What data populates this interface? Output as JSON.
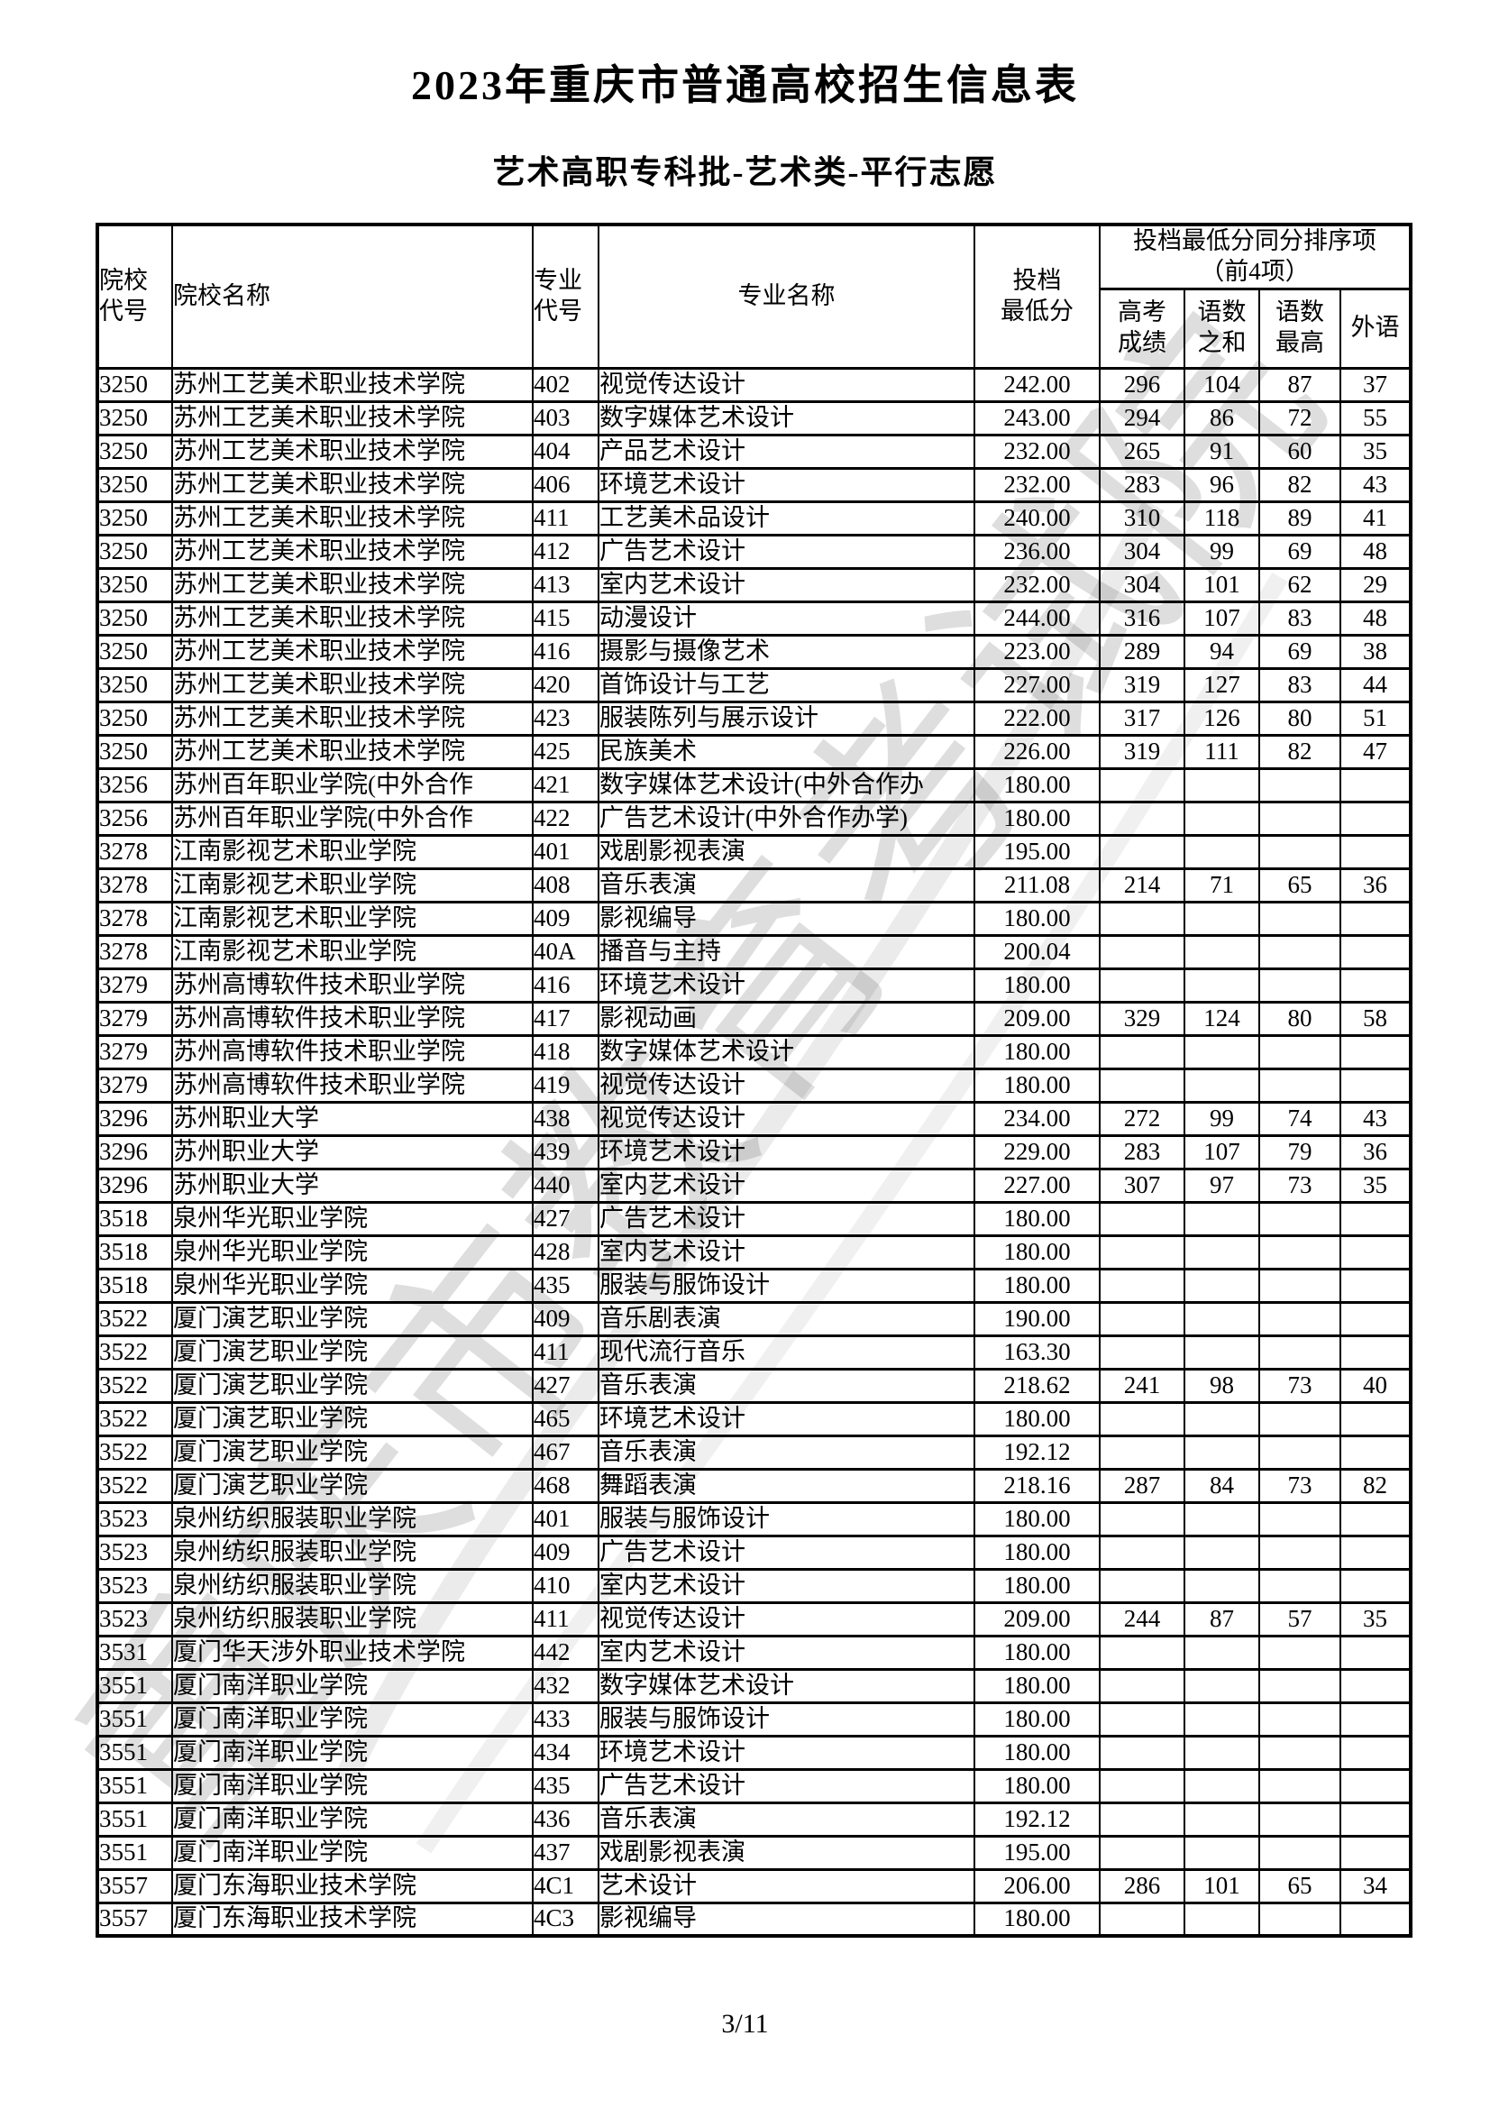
{
  "page": {
    "title": "2023年重庆市普通高校招生信息表",
    "subtitle": "艺术高职专科批-艺术类-平行志愿",
    "page_number": "3/11",
    "watermark": "重庆市教育考试院"
  },
  "table": {
    "headers": {
      "college_code": "院校\n代号",
      "college_name": "院校名称",
      "major_code": "专业\n代号",
      "major_name": "专业名称",
      "min_score": "投档\n最低分",
      "tiebreak_group": "投档最低分同分排序项\n（前4项）",
      "gaokao": "高考\n成绩",
      "yushu_sum": "语数\n之和",
      "yushu_max": "语数\n最高",
      "foreign": "外语"
    },
    "columns": [
      "院校代号",
      "院校名称",
      "专业代号",
      "专业名称",
      "投档最低分",
      "高考成绩",
      "语数之和",
      "语数最高",
      "外语"
    ],
    "rows": [
      [
        "3250",
        "苏州工艺美术职业技术学院",
        "402",
        "视觉传达设计",
        "242.00",
        "296",
        "104",
        "87",
        "37"
      ],
      [
        "3250",
        "苏州工艺美术职业技术学院",
        "403",
        "数字媒体艺术设计",
        "243.00",
        "294",
        "86",
        "72",
        "55"
      ],
      [
        "3250",
        "苏州工艺美术职业技术学院",
        "404",
        "产品艺术设计",
        "232.00",
        "265",
        "91",
        "60",
        "35"
      ],
      [
        "3250",
        "苏州工艺美术职业技术学院",
        "406",
        "环境艺术设计",
        "232.00",
        "283",
        "96",
        "82",
        "43"
      ],
      [
        "3250",
        "苏州工艺美术职业技术学院",
        "411",
        "工艺美术品设计",
        "240.00",
        "310",
        "118",
        "89",
        "41"
      ],
      [
        "3250",
        "苏州工艺美术职业技术学院",
        "412",
        "广告艺术设计",
        "236.00",
        "304",
        "99",
        "69",
        "48"
      ],
      [
        "3250",
        "苏州工艺美术职业技术学院",
        "413",
        "室内艺术设计",
        "232.00",
        "304",
        "101",
        "62",
        "29"
      ],
      [
        "3250",
        "苏州工艺美术职业技术学院",
        "415",
        "动漫设计",
        "244.00",
        "316",
        "107",
        "83",
        "48"
      ],
      [
        "3250",
        "苏州工艺美术职业技术学院",
        "416",
        "摄影与摄像艺术",
        "223.00",
        "289",
        "94",
        "69",
        "38"
      ],
      [
        "3250",
        "苏州工艺美术职业技术学院",
        "420",
        "首饰设计与工艺",
        "227.00",
        "319",
        "127",
        "83",
        "44"
      ],
      [
        "3250",
        "苏州工艺美术职业技术学院",
        "423",
        "服装陈列与展示设计",
        "222.00",
        "317",
        "126",
        "80",
        "51"
      ],
      [
        "3250",
        "苏州工艺美术职业技术学院",
        "425",
        "民族美术",
        "226.00",
        "319",
        "111",
        "82",
        "47"
      ],
      [
        "3256",
        "苏州百年职业学院(中外合作",
        "421",
        "数字媒体艺术设计(中外合作办",
        "180.00",
        "",
        "",
        "",
        ""
      ],
      [
        "3256",
        "苏州百年职业学院(中外合作",
        "422",
        "广告艺术设计(中外合作办学)",
        "180.00",
        "",
        "",
        "",
        ""
      ],
      [
        "3278",
        "江南影视艺术职业学院",
        "401",
        "戏剧影视表演",
        "195.00",
        "",
        "",
        "",
        ""
      ],
      [
        "3278",
        "江南影视艺术职业学院",
        "408",
        "音乐表演",
        "211.08",
        "214",
        "71",
        "65",
        "36"
      ],
      [
        "3278",
        "江南影视艺术职业学院",
        "409",
        "影视编导",
        "180.00",
        "",
        "",
        "",
        ""
      ],
      [
        "3278",
        "江南影视艺术职业学院",
        "40A",
        "播音与主持",
        "200.04",
        "",
        "",
        "",
        ""
      ],
      [
        "3279",
        "苏州高博软件技术职业学院",
        "416",
        "环境艺术设计",
        "180.00",
        "",
        "",
        "",
        ""
      ],
      [
        "3279",
        "苏州高博软件技术职业学院",
        "417",
        "影视动画",
        "209.00",
        "329",
        "124",
        "80",
        "58"
      ],
      [
        "3279",
        "苏州高博软件技术职业学院",
        "418",
        "数字媒体艺术设计",
        "180.00",
        "",
        "",
        "",
        ""
      ],
      [
        "3279",
        "苏州高博软件技术职业学院",
        "419",
        "视觉传达设计",
        "180.00",
        "",
        "",
        "",
        ""
      ],
      [
        "3296",
        "苏州职业大学",
        "438",
        "视觉传达设计",
        "234.00",
        "272",
        "99",
        "74",
        "43"
      ],
      [
        "3296",
        "苏州职业大学",
        "439",
        "环境艺术设计",
        "229.00",
        "283",
        "107",
        "79",
        "36"
      ],
      [
        "3296",
        "苏州职业大学",
        "440",
        "室内艺术设计",
        "227.00",
        "307",
        "97",
        "73",
        "35"
      ],
      [
        "3518",
        "泉州华光职业学院",
        "427",
        "广告艺术设计",
        "180.00",
        "",
        "",
        "",
        ""
      ],
      [
        "3518",
        "泉州华光职业学院",
        "428",
        "室内艺术设计",
        "180.00",
        "",
        "",
        "",
        ""
      ],
      [
        "3518",
        "泉州华光职业学院",
        "435",
        "服装与服饰设计",
        "180.00",
        "",
        "",
        "",
        ""
      ],
      [
        "3522",
        "厦门演艺职业学院",
        "409",
        "音乐剧表演",
        "190.00",
        "",
        "",
        "",
        ""
      ],
      [
        "3522",
        "厦门演艺职业学院",
        "411",
        "现代流行音乐",
        "163.30",
        "",
        "",
        "",
        ""
      ],
      [
        "3522",
        "厦门演艺职业学院",
        "427",
        "音乐表演",
        "218.62",
        "241",
        "98",
        "73",
        "40"
      ],
      [
        "3522",
        "厦门演艺职业学院",
        "465",
        "环境艺术设计",
        "180.00",
        "",
        "",
        "",
        ""
      ],
      [
        "3522",
        "厦门演艺职业学院",
        "467",
        "音乐表演",
        "192.12",
        "",
        "",
        "",
        ""
      ],
      [
        "3522",
        "厦门演艺职业学院",
        "468",
        "舞蹈表演",
        "218.16",
        "287",
        "84",
        "73",
        "82"
      ],
      [
        "3523",
        "泉州纺织服装职业学院",
        "401",
        "服装与服饰设计",
        "180.00",
        "",
        "",
        "",
        ""
      ],
      [
        "3523",
        "泉州纺织服装职业学院",
        "409",
        "广告艺术设计",
        "180.00",
        "",
        "",
        "",
        ""
      ],
      [
        "3523",
        "泉州纺织服装职业学院",
        "410",
        "室内艺术设计",
        "180.00",
        "",
        "",
        "",
        ""
      ],
      [
        "3523",
        "泉州纺织服装职业学院",
        "411",
        "视觉传达设计",
        "209.00",
        "244",
        "87",
        "57",
        "35"
      ],
      [
        "3531",
        "厦门华天涉外职业技术学院",
        "442",
        "室内艺术设计",
        "180.00",
        "",
        "",
        "",
        ""
      ],
      [
        "3551",
        "厦门南洋职业学院",
        "432",
        "数字媒体艺术设计",
        "180.00",
        "",
        "",
        "",
        ""
      ],
      [
        "3551",
        "厦门南洋职业学院",
        "433",
        "服装与服饰设计",
        "180.00",
        "",
        "",
        "",
        ""
      ],
      [
        "3551",
        "厦门南洋职业学院",
        "434",
        "环境艺术设计",
        "180.00",
        "",
        "",
        "",
        ""
      ],
      [
        "3551",
        "厦门南洋职业学院",
        "435",
        "广告艺术设计",
        "180.00",
        "",
        "",
        "",
        ""
      ],
      [
        "3551",
        "厦门南洋职业学院",
        "436",
        "音乐表演",
        "192.12",
        "",
        "",
        "",
        ""
      ],
      [
        "3551",
        "厦门南洋职业学院",
        "437",
        "戏剧影视表演",
        "195.00",
        "",
        "",
        "",
        ""
      ],
      [
        "3557",
        "厦门东海职业技术学院",
        "4C1",
        "艺术设计",
        "206.00",
        "286",
        "101",
        "65",
        "34"
      ],
      [
        "3557",
        "厦门东海职业技术学院",
        "4C3",
        "影视编导",
        "180.00",
        "",
        "",
        "",
        ""
      ]
    ]
  }
}
